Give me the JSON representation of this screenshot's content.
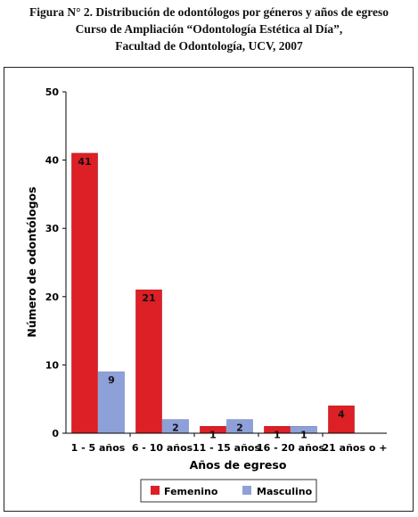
{
  "title_lines": [
    "Figura N° 2. Distribución de odontólogos por géneros y años de egreso",
    "Curso de Ampliación “Odontología Estética al Día”,",
    "Facultad de Odontología, UCV, 2007"
  ],
  "chart_data": {
    "type": "bar",
    "categories": [
      "1 - 5 años",
      "6 - 10 años",
      "11 - 15 años",
      "16 - 20 años",
      "21 años o +"
    ],
    "series": [
      {
        "name": "Femenino",
        "values": [
          41,
          21,
          1,
          1,
          4
        ]
      },
      {
        "name": "Masculino",
        "values": [
          9,
          2,
          2,
          1,
          null
        ]
      }
    ],
    "data_labels": [
      [
        "41",
        "21",
        "1",
        "1",
        "4"
      ],
      [
        "9",
        "2",
        "2",
        "1",
        ""
      ]
    ],
    "xlabel": "Años de egreso",
    "ylabel": "Número de odontólogos",
    "ylim": [
      0,
      50
    ],
    "yticks": [
      "0",
      "10",
      "20",
      "30",
      "40",
      "50"
    ],
    "grid": false,
    "legend_position": "bottom",
    "colors": {
      "Femenino": "#dd1f26",
      "Masculino": "#8ea0d8"
    }
  }
}
